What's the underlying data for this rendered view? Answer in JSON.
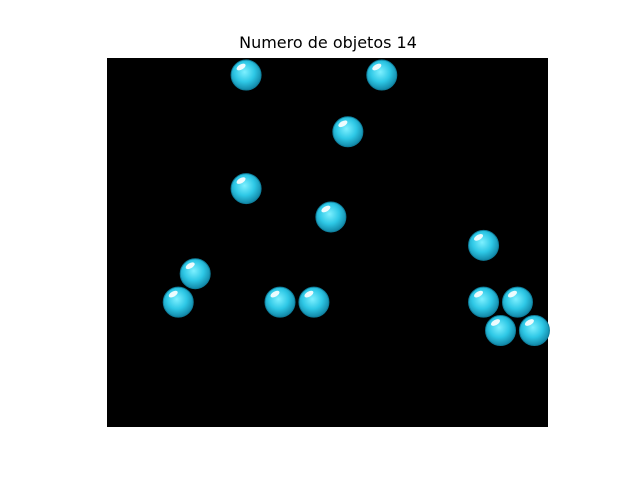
{
  "chart_data": {
    "type": "scatter",
    "title": "Numero de objetos 14",
    "xlabel": "",
    "ylabel": "",
    "axes_visible": false,
    "xlim": [
      0,
      13
    ],
    "ylim": [
      0,
      13
    ],
    "background_color": "#000000",
    "marker": "bubble-sphere",
    "marker_color": "#2ec8e6",
    "series": [
      {
        "values": [
          {
            "x": 4.1,
            "y": 12.4
          },
          {
            "x": 8.1,
            "y": 12.4
          },
          {
            "x": 7.1,
            "y": 10.4
          },
          {
            "x": 4.1,
            "y": 8.4
          },
          {
            "x": 6.6,
            "y": 7.4
          },
          {
            "x": 11.1,
            "y": 6.4
          },
          {
            "x": 2.6,
            "y": 5.4
          },
          {
            "x": 2.1,
            "y": 4.4
          },
          {
            "x": 5.1,
            "y": 4.4
          },
          {
            "x": 6.1,
            "y": 4.4
          },
          {
            "x": 11.1,
            "y": 4.4
          },
          {
            "x": 12.1,
            "y": 4.4
          },
          {
            "x": 11.6,
            "y": 3.4
          },
          {
            "x": 12.6,
            "y": 3.4
          }
        ]
      }
    ]
  }
}
